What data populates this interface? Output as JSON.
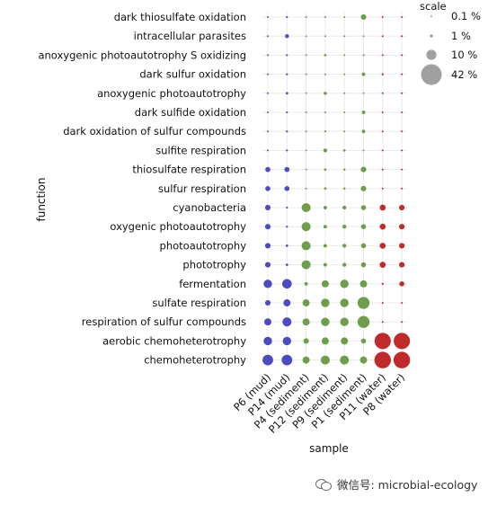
{
  "chart_data": {
    "type": "scatter",
    "xlabel": "sample",
    "ylabel": "function",
    "samples": [
      "P6 (mud)",
      "P14 (mud)",
      "P4 (sediment)",
      "P12 (sediment)",
      "P9 (sediment)",
      "P1 (sediment)",
      "P11 (water)",
      "P8 (water)"
    ],
    "functions": [
      "dark thiosulfate oxidation",
      "intracellular parasites",
      "anoxygenic photoautotrophy S oxidizing",
      "dark sulfur oxidation",
      "anoxygenic photoautotrophy",
      "dark sulfide oxidation",
      "dark oxidation of sulfur compounds",
      "sulfite respiration",
      "thiosulfate respiration",
      "sulfur respiration",
      "cyanobacteria",
      "oxygenic photoautotrophy",
      "photoautotrophy",
      "phototrophy",
      "fermentation",
      "sulfate respiration",
      "respiration of sulfur compounds",
      "aerobic chemoheterotrophy",
      "chemoheterotrophy"
    ],
    "sample_colors": [
      "#4c4cbf",
      "#4c4cbf",
      "#6e9e4c",
      "#6e9e4c",
      "#6e9e4c",
      "#6e9e4c",
      "#bf2a2a",
      "#bf2a2a"
    ],
    "values": [
      [
        0.05,
        0.4,
        0.03,
        0.03,
        0.05,
        3,
        0.05,
        0.02
      ],
      [
        0.05,
        1.5,
        0.02,
        0.03,
        0.05,
        0.03,
        0.02,
        0.02
      ],
      [
        0.08,
        0.4,
        0.02,
        0.6,
        0.1,
        0.05,
        0.03,
        0.02
      ],
      [
        0.05,
        0.4,
        0.02,
        0.03,
        0.05,
        1.2,
        0.4,
        0.05
      ],
      [
        0.15,
        0.6,
        0.2,
        1.0,
        0.1,
        0.05,
        0.02,
        0.02
      ],
      [
        0.05,
        0.4,
        0.02,
        0.03,
        0.05,
        1.2,
        0.3,
        0.05
      ],
      [
        0.05,
        0.4,
        0.03,
        0.4,
        0.05,
        1.2,
        0.3,
        0.05
      ],
      [
        0.02,
        0.4,
        0.02,
        1.5,
        0.6,
        0.2,
        0.02,
        0.02
      ],
      [
        2.5,
        2.5,
        0.2,
        0.6,
        0.5,
        3,
        0.02,
        0.02
      ],
      [
        2.5,
        2.5,
        0.2,
        0.6,
        0.5,
        3,
        0.02,
        0.02
      ],
      [
        3,
        0.4,
        8,
        1.2,
        1.5,
        2.5,
        3.5,
        3
      ],
      [
        3,
        0.4,
        8,
        1.2,
        1.5,
        2.5,
        3.5,
        3
      ],
      [
        3,
        0.6,
        8,
        1.2,
        1.5,
        2.5,
        3.5,
        3
      ],
      [
        3,
        0.6,
        8,
        1.2,
        1.5,
        2.5,
        3.5,
        3
      ],
      [
        7,
        9,
        1.2,
        5,
        7,
        5,
        0.4,
        2.5
      ],
      [
        3,
        5,
        5,
        7,
        7,
        14,
        0.05,
        0.05
      ],
      [
        5,
        8,
        5,
        7,
        7,
        14,
        0.2,
        0.3
      ],
      [
        7,
        7,
        3,
        5,
        5,
        2.5,
        26,
        26
      ],
      [
        11,
        11,
        5,
        8,
        8,
        5,
        27,
        27
      ]
    ],
    "legend": {
      "title": "scale",
      "placement": "top-right",
      "entries": [
        {
          "label": "0.1 %",
          "value": 0.1
        },
        {
          "label": "1 %",
          "value": 1
        },
        {
          "label": "10 %",
          "value": 10
        },
        {
          "label": "42 %",
          "value": 42
        }
      ],
      "color": "#a0a0a0"
    },
    "size_max_value": 42,
    "grid": true
  },
  "watermark": {
    "text": "微信号: microbial-ecology",
    "icon": "wechat-icon"
  }
}
